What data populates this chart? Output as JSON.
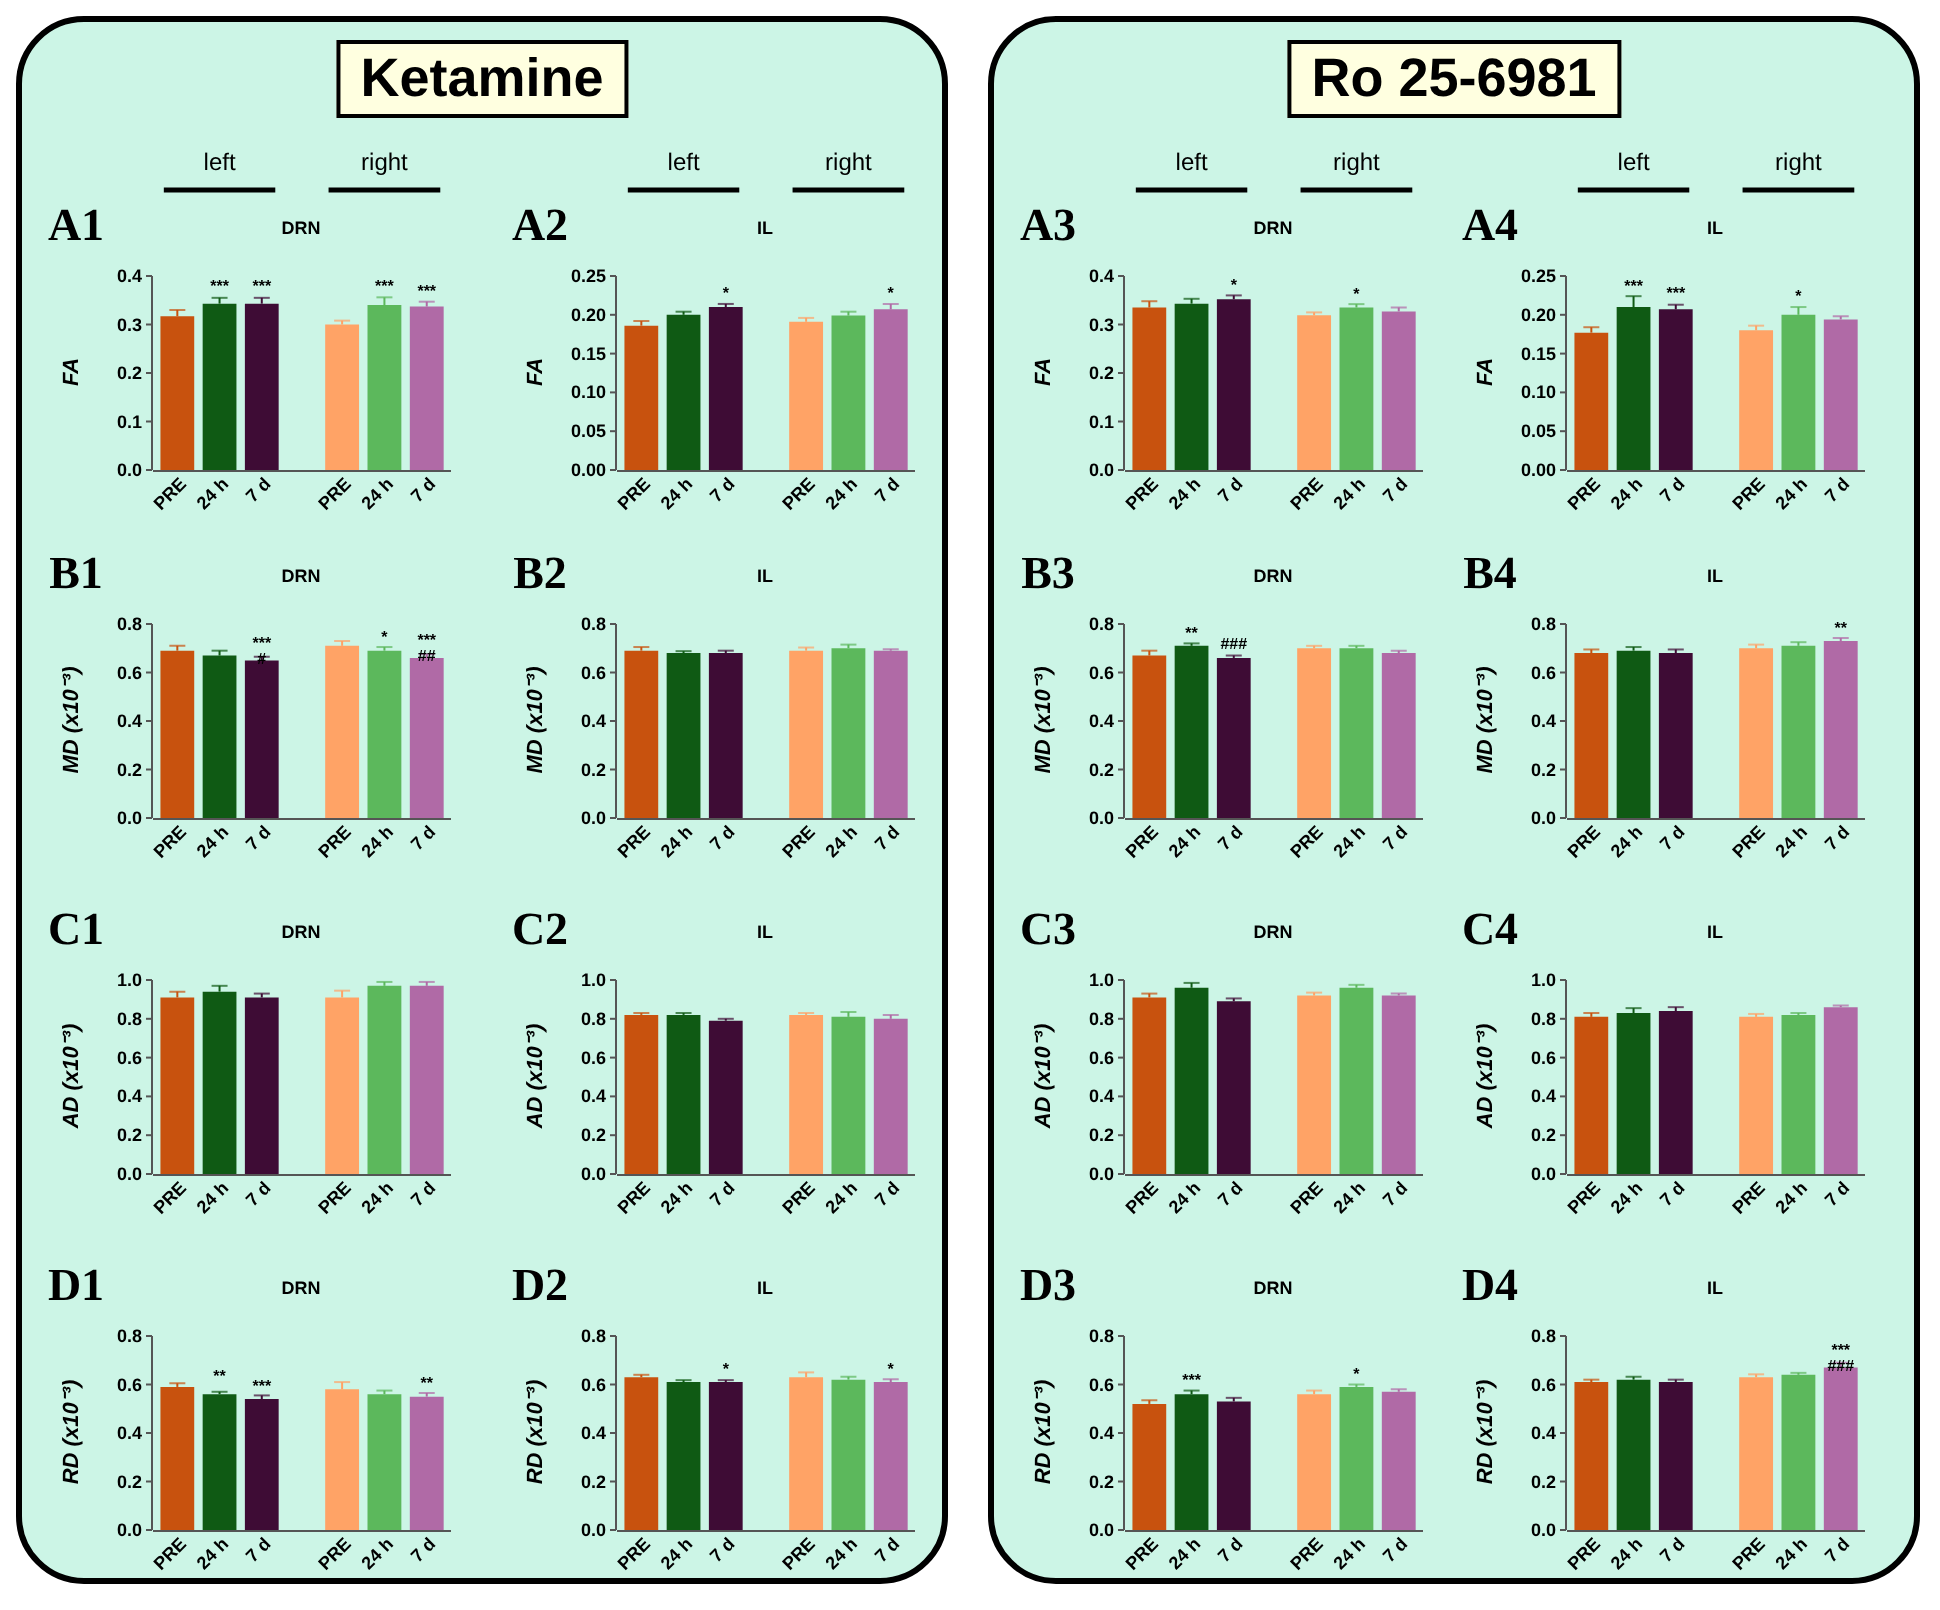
{
  "chart_data": [
    {
      "type": "bar",
      "title": "DRN",
      "ylabel": "FA",
      "categories": [
        "PRE",
        "24 h",
        "7 d"
      ],
      "values": [
        0.317,
        0.343,
        0.343
      ],
      "errors": [
        0.013,
        0.012,
        0.012
      ],
      "colors": [
        "#c8520e",
        "#0f5a14",
        "#3e0c35"
      ],
      "ylim": [
        0,
        0.4
      ],
      "yticks": [
        {
          "value": 0,
          "label": "0.0"
        },
        0.1,
        0.2,
        0.3,
        0.4
      ],
      "annotations": [
        "A1",
        "Ketamine",
        "left",
        {
          "text": "***",
          "x": "24 h",
          "y": 0.36
        },
        {
          "text": "***",
          "x": "7 d",
          "y": 0.36
        }
      ]
    },
    {
      "type": "bar",
      "categories": [
        "PRE",
        "24 h",
        "7 d"
      ],
      "values": [
        0.3,
        0.34,
        0.337
      ],
      "errors": [
        0.008,
        0.016,
        0.01
      ],
      "colors": [
        "#ffa366",
        "#5cb85c",
        "#b06aa6"
      ],
      "ylim": [
        0,
        0.4
      ],
      "tick_labels": "x",
      "annotations": [
        "right",
        {
          "text": "***",
          "x": "24 h",
          "y": 0.36
        },
        {
          "text": "***",
          "x": "7 d",
          "y": 0.35
        }
      ]
    },
    {
      "type": "bar",
      "title": "IL",
      "ylabel": "FA",
      "categories": [
        "PRE",
        "24 h",
        "7 d"
      ],
      "values": [
        0.186,
        0.2,
        0.21
      ],
      "errors": [
        0.006,
        0.004,
        0.004
      ],
      "colors": [
        "#c8520e",
        "#0f5a14",
        "#3e0c35"
      ],
      "ylim": [
        0,
        0.25
      ],
      "yticks": [
        {
          "value": 0,
          "label": "0.00"
        },
        0.05,
        {
          "value": 0.1,
          "label": "0.10"
        },
        0.15,
        {
          "value": 0.2,
          "label": "0.20"
        },
        0.25
      ],
      "annotations": [
        "A2",
        "left",
        {
          "text": "*",
          "x": "7 d",
          "y": 0.216
        }
      ]
    },
    {
      "type": "bar",
      "categories": [
        "PRE",
        "24 h",
        "7 d"
      ],
      "values": [
        0.191,
        0.199,
        0.207
      ],
      "errors": [
        0.005,
        0.005,
        0.007
      ],
      "colors": [
        "#ffa366",
        "#5cb85c",
        "#b06aa6"
      ],
      "ylim": [
        0,
        0.25
      ],
      "tick_labels": "x",
      "annotations": [
        "right",
        {
          "text": "*",
          "x": "7 d",
          "y": 0.216
        }
      ]
    },
    {
      "type": "bar",
      "title": "DRN",
      "ylabel": "FA",
      "categories": [
        "PRE",
        "24 h",
        "7 d"
      ],
      "values": [
        0.335,
        0.343,
        0.352
      ],
      "errors": [
        0.013,
        0.01,
        0.008
      ],
      "colors": [
        "#c8520e",
        "#0f5a14",
        "#3e0c35"
      ],
      "ylim": [
        0,
        0.4
      ],
      "yticks": [
        {
          "value": 0,
          "label": "0.0"
        },
        0.1,
        0.2,
        0.3,
        0.4
      ],
      "annotations": [
        "A3",
        "Ro 25-6981",
        "left",
        {
          "text": "*",
          "x": "7 d",
          "y": 0.362
        }
      ]
    },
    {
      "type": "bar",
      "categories": [
        "PRE",
        "24 h",
        "7 d"
      ],
      "values": [
        0.319,
        0.335,
        0.327
      ],
      "errors": [
        0.006,
        0.007,
        0.008
      ],
      "colors": [
        "#ffa366",
        "#5cb85c",
        "#b06aa6"
      ],
      "ylim": [
        0,
        0.4
      ],
      "tick_labels": "x",
      "annotations": [
        "right",
        {
          "text": "*",
          "x": "24 h",
          "y": 0.345
        }
      ]
    },
    {
      "type": "bar",
      "title": "IL",
      "ylabel": "FA",
      "categories": [
        "PRE",
        "24 h",
        "7 d"
      ],
      "values": [
        0.177,
        0.21,
        0.207
      ],
      "errors": [
        0.007,
        0.014,
        0.006
      ],
      "colors": [
        "#c8520e",
        "#0f5a14",
        "#3e0c35"
      ],
      "ylim": [
        0,
        0.25
      ],
      "yticks": [
        {
          "value": 0,
          "label": "0.00"
        },
        0.05,
        {
          "value": 0.1,
          "label": "0.10"
        },
        0.15,
        {
          "value": 0.2,
          "label": "0.20"
        },
        0.25
      ],
      "annotations": [
        "A4",
        "left",
        {
          "text": "***",
          "x": "24 h",
          "y": 0.226
        },
        {
          "text": "***",
          "x": "7 d",
          "y": 0.216
        }
      ]
    },
    {
      "type": "bar",
      "categories": [
        "PRE",
        "24 h",
        "7 d"
      ],
      "values": [
        0.18,
        0.2,
        0.194
      ],
      "errors": [
        0.006,
        0.01,
        0.004
      ],
      "colors": [
        "#ffa366",
        "#5cb85c",
        "#b06aa6"
      ],
      "ylim": [
        0,
        0.25
      ],
      "tick_labels": "x",
      "annotations": [
        "right",
        {
          "text": "*",
          "x": "24 h",
          "y": 0.212
        }
      ]
    },
    {
      "type": "bar",
      "title": "DRN",
      "ylabel": "MD (x10⁻³)",
      "categories": [
        "PRE",
        "24 h",
        "7 d"
      ],
      "values": [
        0.69,
        0.67,
        0.65
      ],
      "errors": [
        0.02,
        0.02,
        0.015
      ],
      "colors": [
        "#c8520e",
        "#0f5a14",
        "#3e0c35"
      ],
      "ylim": [
        0,
        0.8
      ],
      "yticks": [
        {
          "value": 0,
          "label": "0.0"
        },
        0.2,
        0.4,
        0.6,
        0.8
      ],
      "annotations": [
        "B1",
        {
          "text": "***\n#",
          "x": "7 d",
          "y": 0.685
        }
      ]
    },
    {
      "type": "bar",
      "categories": [
        "PRE",
        "24 h",
        "7 d"
      ],
      "values": [
        0.71,
        0.69,
        0.66
      ],
      "errors": [
        0.02,
        0.015,
        0.015
      ],
      "colors": [
        "#ffa366",
        "#5cb85c",
        "#b06aa6"
      ],
      "ylim": [
        0,
        0.8
      ],
      "tick_labels": "x",
      "annotations": [
        {
          "text": "*",
          "x": "24 h",
          "y": 0.71
        },
        {
          "text": "***\n##",
          "x": "7 d",
          "y": 0.697
        }
      ]
    },
    {
      "type": "bar",
      "title": "IL",
      "ylabel": "MD (x10⁻³)",
      "categories": [
        "PRE",
        "24 h",
        "7 d"
      ],
      "values": [
        0.69,
        0.68,
        0.68
      ],
      "errors": [
        0.015,
        0.008,
        0.01
      ],
      "colors": [
        "#c8520e",
        "#0f5a14",
        "#3e0c35"
      ],
      "ylim": [
        0,
        0.8
      ],
      "yticks": [
        {
          "value": 0,
          "label": "0.0"
        },
        0.2,
        0.4,
        0.6,
        0.8
      ],
      "annotations": [
        "B2"
      ]
    },
    {
      "type": "bar",
      "categories": [
        "PRE",
        "24 h",
        "7 d"
      ],
      "values": [
        0.69,
        0.7,
        0.69
      ],
      "errors": [
        0.013,
        0.015,
        0.006
      ],
      "colors": [
        "#ffa366",
        "#5cb85c",
        "#b06aa6"
      ],
      "ylim": [
        0,
        0.8
      ],
      "tick_labels": "x"
    },
    {
      "type": "bar",
      "title": "DRN",
      "ylabel": "MD (x10⁻³)",
      "categories": [
        "PRE",
        "24 h",
        "7 d"
      ],
      "values": [
        0.67,
        0.71,
        0.66
      ],
      "errors": [
        0.02,
        0.01,
        0.01
      ],
      "colors": [
        "#c8520e",
        "#0f5a14",
        "#3e0c35"
      ],
      "ylim": [
        0,
        0.8
      ],
      "yticks": [
        {
          "value": 0,
          "label": "0.0"
        },
        0.2,
        0.4,
        0.6,
        0.8
      ],
      "annotations": [
        "B3",
        {
          "text": "**",
          "x": "24 h",
          "y": 0.725
        },
        {
          "text": "###",
          "x": "7 d",
          "y": 0.68
        }
      ]
    },
    {
      "type": "bar",
      "categories": [
        "PRE",
        "24 h",
        "7 d"
      ],
      "values": [
        0.7,
        0.7,
        0.68
      ],
      "errors": [
        0.01,
        0.01,
        0.01
      ],
      "colors": [
        "#ffa366",
        "#5cb85c",
        "#b06aa6"
      ],
      "ylim": [
        0,
        0.8
      ],
      "tick_labels": "x"
    },
    {
      "type": "bar",
      "title": "IL",
      "ylabel": "MD (x10⁻³)",
      "categories": [
        "PRE",
        "24 h",
        "7 d"
      ],
      "values": [
        0.68,
        0.69,
        0.68
      ],
      "errors": [
        0.015,
        0.015,
        0.015
      ],
      "colors": [
        "#c8520e",
        "#0f5a14",
        "#3e0c35"
      ],
      "ylim": [
        0,
        0.8
      ],
      "yticks": [
        {
          "value": 0,
          "label": "0.0"
        },
        0.2,
        0.4,
        0.6,
        0.8
      ],
      "annotations": [
        "B4"
      ]
    },
    {
      "type": "bar",
      "categories": [
        "PRE",
        "24 h",
        "7 d"
      ],
      "values": [
        0.7,
        0.71,
        0.73
      ],
      "errors": [
        0.015,
        0.015,
        0.012
      ],
      "colors": [
        "#ffa366",
        "#5cb85c",
        "#b06aa6"
      ],
      "ylim": [
        0,
        0.8
      ],
      "tick_labels": "x",
      "annotations": [
        {
          "text": "**",
          "x": "7 d",
          "y": 0.745
        }
      ]
    },
    {
      "type": "bar",
      "title": "DRN",
      "ylabel": "AD (x10⁻³)",
      "categories": [
        "PRE",
        "24 h",
        "7 d"
      ],
      "values": [
        0.91,
        0.94,
        0.91
      ],
      "errors": [
        0.03,
        0.03,
        0.02
      ],
      "colors": [
        "#c8520e",
        "#0f5a14",
        "#3e0c35"
      ],
      "ylim": [
        0,
        1
      ],
      "yticks": [
        {
          "value": 0,
          "label": "0.0"
        },
        0.2,
        0.4,
        0.6,
        0.8,
        {
          "value": 1,
          "label": "1.0"
        }
      ],
      "annotations": [
        "C1"
      ]
    },
    {
      "type": "bar",
      "categories": [
        "PRE",
        "24 h",
        "7 d"
      ],
      "values": [
        0.91,
        0.97,
        0.97
      ],
      "errors": [
        0.035,
        0.02,
        0.02
      ],
      "colors": [
        "#ffa366",
        "#5cb85c",
        "#b06aa6"
      ],
      "ylim": [
        0,
        1
      ],
      "tick_labels": "x"
    },
    {
      "type": "bar",
      "title": "IL",
      "ylabel": "AD (x10⁻³)",
      "categories": [
        "PRE",
        "24 h",
        "7 d"
      ],
      "values": [
        0.82,
        0.82,
        0.79
      ],
      "errors": [
        0.01,
        0.01,
        0.01
      ],
      "colors": [
        "#c8520e",
        "#0f5a14",
        "#3e0c35"
      ],
      "ylim": [
        0,
        1
      ],
      "yticks": [
        {
          "value": 0,
          "label": "0.0"
        },
        0.2,
        0.4,
        0.6,
        0.8,
        {
          "value": 1,
          "label": "1.0"
        }
      ],
      "annotations": [
        "C2"
      ]
    },
    {
      "type": "bar",
      "categories": [
        "PRE",
        "24 h",
        "7 d"
      ],
      "values": [
        0.82,
        0.81,
        0.8
      ],
      "errors": [
        0.01,
        0.025,
        0.02
      ],
      "colors": [
        "#ffa366",
        "#5cb85c",
        "#b06aa6"
      ],
      "ylim": [
        0,
        1
      ],
      "tick_labels": "x"
    },
    {
      "type": "bar",
      "title": "DRN",
      "ylabel": "AD (x10⁻³)",
      "categories": [
        "PRE",
        "24 h",
        "7 d"
      ],
      "values": [
        0.91,
        0.96,
        0.89
      ],
      "errors": [
        0.02,
        0.025,
        0.015
      ],
      "colors": [
        "#c8520e",
        "#0f5a14",
        "#3e0c35"
      ],
      "ylim": [
        0,
        1
      ],
      "yticks": [
        {
          "value": 0,
          "label": "0.0"
        },
        0.2,
        0.4,
        0.6,
        0.8,
        {
          "value": 1,
          "label": "1.0"
        }
      ],
      "annotations": [
        "C3"
      ]
    },
    {
      "type": "bar",
      "categories": [
        "PRE",
        "24 h",
        "7 d"
      ],
      "values": [
        0.92,
        0.96,
        0.92
      ],
      "errors": [
        0.015,
        0.015,
        0.01
      ],
      "colors": [
        "#ffa366",
        "#5cb85c",
        "#b06aa6"
      ],
      "ylim": [
        0,
        1
      ],
      "tick_labels": "x"
    },
    {
      "type": "bar",
      "title": "IL",
      "ylabel": "AD (x10⁻³)",
      "categories": [
        "PRE",
        "24 h",
        "7 d"
      ],
      "values": [
        0.81,
        0.83,
        0.84
      ],
      "errors": [
        0.02,
        0.025,
        0.02
      ],
      "colors": [
        "#c8520e",
        "#0f5a14",
        "#3e0c35"
      ],
      "ylim": [
        0,
        1
      ],
      "yticks": [
        {
          "value": 0,
          "label": "0.0"
        },
        0.2,
        0.4,
        0.6,
        0.8,
        {
          "value": 1,
          "label": "1.0"
        }
      ],
      "annotations": [
        "C4"
      ]
    },
    {
      "type": "bar",
      "categories": [
        "PRE",
        "24 h",
        "7 d"
      ],
      "values": [
        0.81,
        0.82,
        0.86
      ],
      "errors": [
        0.015,
        0.01,
        0.008
      ],
      "colors": [
        "#ffa366",
        "#5cb85c",
        "#b06aa6"
      ],
      "ylim": [
        0,
        1
      ],
      "tick_labels": "x"
    },
    {
      "type": "bar",
      "title": "DRN",
      "ylabel": "RD (x10⁻³)",
      "categories": [
        "PRE",
        "24 h",
        "7 d"
      ],
      "values": [
        0.59,
        0.56,
        0.54
      ],
      "errors": [
        0.015,
        0.01,
        0.015
      ],
      "colors": [
        "#c8520e",
        "#0f5a14",
        "#3e0c35"
      ],
      "ylim": [
        0,
        0.8
      ],
      "yticks": [
        {
          "value": 0,
          "label": "0.0"
        },
        0.2,
        0.4,
        0.6,
        0.8
      ],
      "annotations": [
        "D1",
        {
          "text": "**",
          "x": "24 h",
          "y": 0.6
        },
        {
          "text": "***",
          "x": "7 d",
          "y": 0.555
        }
      ]
    },
    {
      "type": "bar",
      "categories": [
        "PRE",
        "24 h",
        "7 d"
      ],
      "values": [
        0.58,
        0.56,
        0.55
      ],
      "errors": [
        0.03,
        0.015,
        0.015
      ],
      "colors": [
        "#ffa366",
        "#5cb85c",
        "#b06aa6"
      ],
      "ylim": [
        0,
        0.8
      ],
      "tick_labels": "x",
      "annotations": [
        {
          "text": "**",
          "x": "7 d",
          "y": 0.57
        }
      ]
    },
    {
      "type": "bar",
      "title": "IL",
      "ylabel": "RD (x10⁻³)",
      "categories": [
        "PRE",
        "24 h",
        "7 d"
      ],
      "values": [
        0.63,
        0.61,
        0.61
      ],
      "errors": [
        0.01,
        0.008,
        0.008
      ],
      "colors": [
        "#c8520e",
        "#0f5a14",
        "#3e0c35"
      ],
      "ylim": [
        0,
        0.8
      ],
      "yticks": [
        {
          "value": 0,
          "label": "0.0"
        },
        0.2,
        0.4,
        0.6,
        0.8
      ],
      "annotations": [
        "D2",
        {
          "text": "*",
          "x": "7 d",
          "y": 0.625
        }
      ]
    },
    {
      "type": "bar",
      "categories": [
        "PRE",
        "24 h",
        "7 d"
      ],
      "values": [
        0.63,
        0.62,
        0.61
      ],
      "errors": [
        0.02,
        0.012,
        0.012
      ],
      "colors": [
        "#ffa366",
        "#5cb85c",
        "#b06aa6"
      ],
      "ylim": [
        0,
        0.8
      ],
      "tick_labels": "x",
      "annotations": [
        {
          "text": "*",
          "x": "7 d",
          "y": 0.625
        }
      ]
    },
    {
      "type": "bar",
      "title": "DRN",
      "ylabel": "RD (x10⁻³)",
      "categories": [
        "PRE",
        "24 h",
        "7 d"
      ],
      "values": [
        0.52,
        0.56,
        0.53
      ],
      "errors": [
        0.015,
        0.015,
        0.015
      ],
      "colors": [
        "#c8520e",
        "#0f5a14",
        "#3e0c35"
      ],
      "ylim": [
        0,
        0.8
      ],
      "yticks": [
        {
          "value": 0,
          "label": "0.0"
        },
        0.2,
        0.4,
        0.6,
        0.8
      ],
      "annotations": [
        "D3",
        {
          "text": "***",
          "x": "24 h",
          "y": 0.58
        }
      ]
    },
    {
      "type": "bar",
      "categories": [
        "PRE",
        "24 h",
        "7 d"
      ],
      "values": [
        0.56,
        0.59,
        0.57
      ],
      "errors": [
        0.015,
        0.01,
        0.01
      ],
      "colors": [
        "#ffa366",
        "#5cb85c",
        "#b06aa6"
      ],
      "ylim": [
        0,
        0.8
      ],
      "tick_labels": "x",
      "annotations": [
        {
          "text": "*",
          "x": "24 h",
          "y": 0.605
        }
      ]
    },
    {
      "type": "bar",
      "title": "IL",
      "ylabel": "RD (x10⁻³)",
      "categories": [
        "PRE",
        "24 h",
        "7 d"
      ],
      "values": [
        0.61,
        0.62,
        0.61
      ],
      "errors": [
        0.01,
        0.012,
        0.01
      ],
      "colors": [
        "#c8520e",
        "#0f5a14",
        "#3e0c35"
      ],
      "ylim": [
        0,
        0.8
      ],
      "yticks": [
        {
          "value": 0,
          "label": "0.0"
        },
        0.2,
        0.4,
        0.6,
        0.8
      ],
      "annotations": [
        "D4"
      ]
    },
    {
      "type": "bar",
      "categories": [
        "PRE",
        "24 h",
        "7 d"
      ],
      "values": [
        0.63,
        0.64,
        0.67
      ],
      "errors": [
        0.012,
        0.008,
        0.02
      ],
      "colors": [
        "#ffa366",
        "#5cb85c",
        "#b06aa6"
      ],
      "ylim": [
        0,
        0.8
      ],
      "tick_labels": "x",
      "annotations": [
        {
          "text": "***\n###",
          "x": "7 d",
          "y": 0.705
        }
      ]
    }
  ]
}
